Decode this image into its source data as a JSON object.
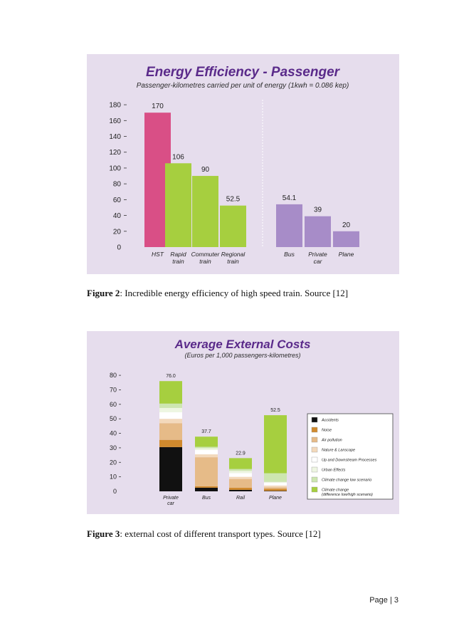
{
  "figures": [
    {
      "caption_label": "Figure 2",
      "caption_text": ": Incredible energy efficiency of high speed train. Source [12]"
    },
    {
      "caption_label": "Figure 3",
      "caption_text": ": external cost of different transport types. Source [12]"
    }
  ],
  "page": {
    "label": "Page | 3"
  },
  "chart_data": [
    {
      "type": "bar",
      "title": "Energy Efficiency - Passenger",
      "subtitle": "Passenger-kilometres carried per unit of energy (1kwh = 0.086 kep)",
      "categories": [
        [
          "HST"
        ],
        [
          "Rapid",
          "train"
        ],
        [
          "Commuter",
          "train"
        ],
        [
          "Regional",
          "train"
        ],
        [
          "Bus"
        ],
        [
          "Private",
          "car"
        ],
        [
          "Plane"
        ]
      ],
      "values": [
        170,
        106,
        90,
        52.5,
        54.1,
        39,
        20
      ],
      "value_labels": [
        "170",
        "106",
        "90",
        "52.5",
        "54.1",
        "39",
        "20"
      ],
      "colors": [
        "#d94f86",
        "#a6cf3f",
        "#a6cf3f",
        "#a6cf3f",
        "#a78cc8",
        "#a78cc8",
        "#a78cc8"
      ],
      "yticks": [
        0,
        20,
        40,
        60,
        80,
        100,
        120,
        140,
        160,
        180
      ],
      "ylim": [
        0,
        190
      ],
      "xlabel": "",
      "ylabel": "",
      "grid": false
    },
    {
      "type": "bar",
      "stacked": true,
      "title": "Average External Costs",
      "subtitle": "(Euros per 1,000 passengers-kilometres)",
      "categories": [
        [
          "Private",
          "car"
        ],
        [
          "Bus"
        ],
        [
          "Rail"
        ],
        [
          "Plane"
        ]
      ],
      "totals": [
        76.0,
        37.7,
        22.9,
        52.5
      ],
      "total_labels": [
        "76.0",
        "37.7",
        "22.9",
        "52.5"
      ],
      "series": [
        {
          "name": "Accidents",
          "color": "#111111",
          "values": [
            30.5,
            2.5,
            1.0,
            0.3
          ]
        },
        {
          "name": "Noise",
          "color": "#d08a2e",
          "values": [
            5.0,
            1.0,
            1.5,
            1.5
          ]
        },
        {
          "name": "Air pollution",
          "color": "#e6bb88",
          "values": [
            11.5,
            20.0,
            6.0,
            1.0
          ]
        },
        {
          "name": "Nature & Lanscape",
          "color": "#f3d9bc",
          "values": [
            3.0,
            2.0,
            1.5,
            1.2
          ]
        },
        {
          "name": "Up and Downstream Processes",
          "color": "#ffffff",
          "values": [
            4.5,
            3.0,
            2.6,
            2.0
          ]
        },
        {
          "name": "Urban Effects",
          "color": "#eef6e2",
          "values": [
            3.0,
            1.2,
            1.5,
            0.5
          ]
        },
        {
          "name": "Climate change low scenario",
          "color": "#cde6b0",
          "values": [
            3.0,
            1.0,
            1.3,
            6.0
          ]
        },
        {
          "name": "Climate change",
          "name_line2": "(difference low/high scenario)",
          "color": "#a6cf3f",
          "values": [
            15.5,
            7.0,
            7.5,
            40.0
          ]
        }
      ],
      "yticks": [
        0,
        10,
        20,
        30,
        40,
        50,
        60,
        70,
        80
      ],
      "ylim": [
        0,
        82
      ],
      "xlabel": "",
      "ylabel": "",
      "legend_position": "right"
    }
  ]
}
